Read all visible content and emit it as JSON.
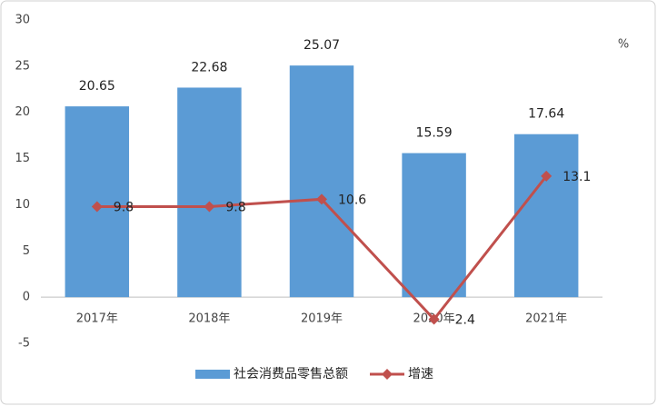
{
  "chart_data": {
    "type": "combo",
    "categories": [
      "2017年",
      "2018年",
      "2019年",
      "2020年",
      "2021年"
    ],
    "series": [
      {
        "name": "社会消费品零售总额",
        "type": "bar",
        "color": "#5b9bd5",
        "values": [
          20.65,
          22.68,
          25.07,
          15.59,
          17.64
        ]
      },
      {
        "name": "增速",
        "type": "line",
        "color": "#c0504d",
        "values": [
          9.8,
          9.8,
          10.6,
          -2.4,
          13.1
        ]
      }
    ],
    "unit_label": "%",
    "ylim": [
      -5,
      30
    ],
    "yticks": [
      -5,
      0,
      5,
      10,
      15,
      20,
      25,
      30
    ],
    "legend": "bottom"
  }
}
